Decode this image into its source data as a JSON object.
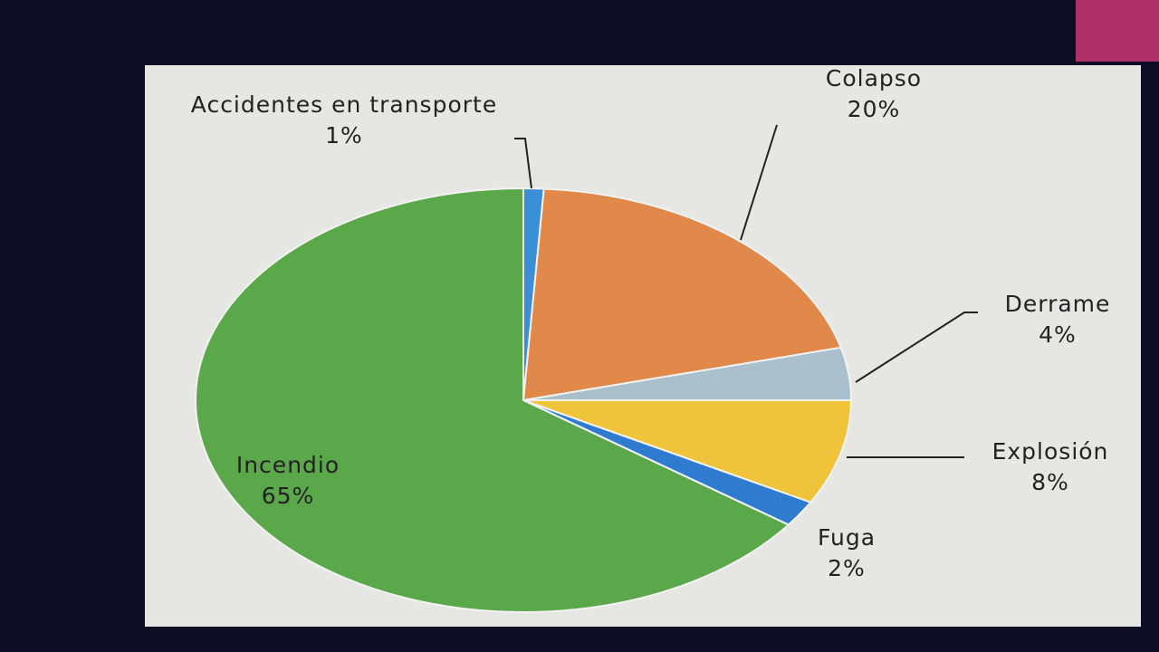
{
  "chart_data": {
    "type": "pie",
    "categories": [
      "Accidentes en transporte",
      "Colapso",
      "Derrame",
      "Explosión",
      "Fuga",
      "Incendio"
    ],
    "values": [
      1,
      20,
      4,
      8,
      2,
      65
    ],
    "value_labels": [
      "1%",
      "20%",
      "4%",
      "8%",
      "2%",
      "65%"
    ],
    "colors": [
      "#3a8fd6",
      "#e0894a",
      "#a9bfcc",
      "#efc43a",
      "#2f7bd0",
      "#5aa84a"
    ]
  }
}
